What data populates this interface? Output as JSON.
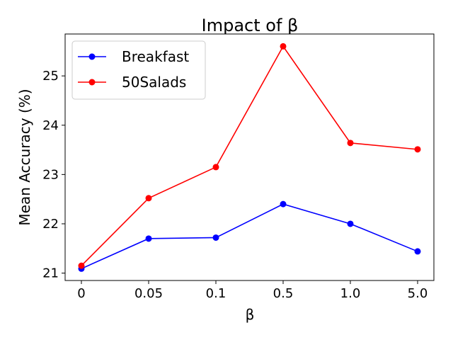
{
  "chart_data": {
    "type": "line",
    "title": "Impact of β",
    "xlabel": "β",
    "ylabel": "Mean Accuracy (%)",
    "categories": [
      "0",
      "0.05",
      "0.1",
      "0.5",
      "1.0",
      "5.0"
    ],
    "yticks": [
      "21",
      "22",
      "23",
      "24",
      "25"
    ],
    "ylim": [
      20.85,
      25.85
    ],
    "grid": false,
    "legend_position": "top-left",
    "series": [
      {
        "name": "Breakfast",
        "color": "#0000ff",
        "values": [
          21.09,
          21.7,
          21.72,
          22.4,
          22.0,
          21.44
        ]
      },
      {
        "name": "50Salads",
        "color": "#ff0000",
        "values": [
          21.15,
          22.52,
          23.15,
          25.6,
          23.64,
          23.51
        ]
      }
    ]
  }
}
